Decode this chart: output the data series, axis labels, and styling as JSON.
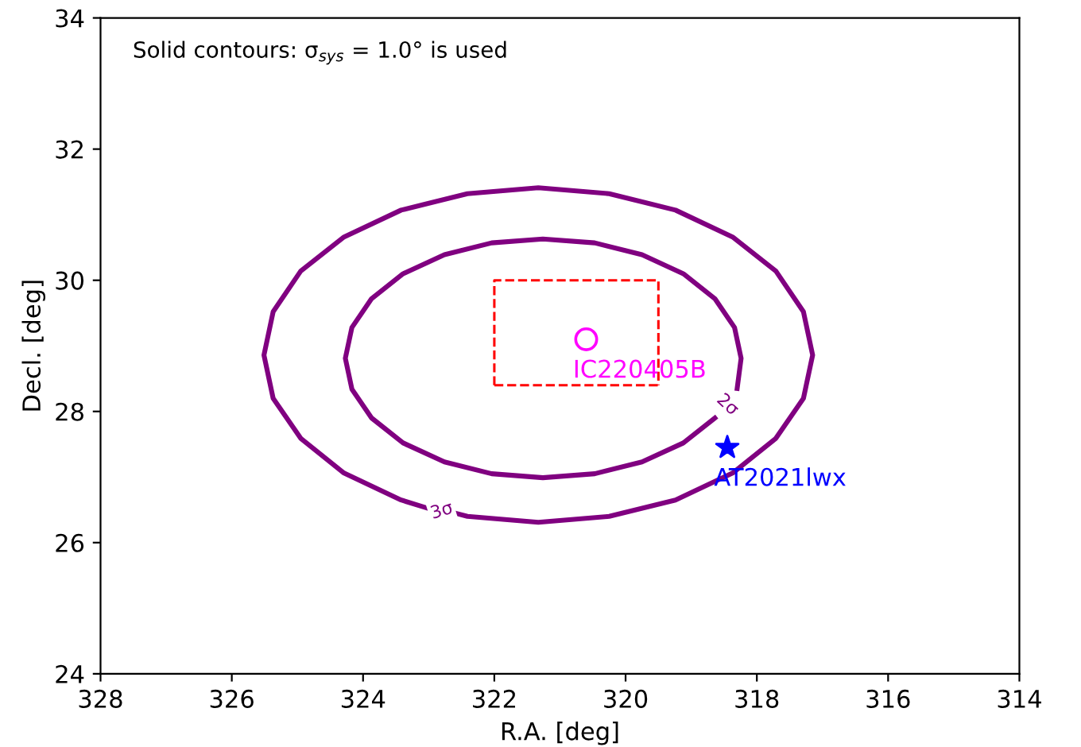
{
  "chart_data": {
    "type": "line",
    "xlabel": "R.A. [deg]",
    "ylabel": "Decl. [deg]",
    "xlim": [
      328,
      314
    ],
    "xticks": [
      328,
      326,
      324,
      322,
      320,
      318,
      316,
      314
    ],
    "ylim": [
      24,
      34
    ],
    "yticks": [
      24,
      26,
      28,
      30,
      32,
      34
    ],
    "grid": false,
    "legend": false,
    "series": [
      {
        "color": "#800080",
        "line_style": "solid",
        "marker": "none",
        "x": [
          323.0,
          323.42,
          324.29,
          324.95,
          325.37,
          325.51,
          325.37,
          324.95,
          324.29,
          323.42,
          322.41,
          321.33,
          320.25,
          319.24,
          318.37,
          317.71,
          317.29,
          317.15,
          317.29,
          317.71,
          318.37,
          319.24,
          320.25,
          321.33,
          322.41,
          322.6
        ],
        "values": [
          26.52,
          26.65,
          27.06,
          27.59,
          28.2,
          28.86,
          29.52,
          30.14,
          30.66,
          31.07,
          31.32,
          31.41,
          31.32,
          31.07,
          30.66,
          30.14,
          29.52,
          28.86,
          28.2,
          27.59,
          27.06,
          26.65,
          26.4,
          26.31,
          26.4,
          26.45
        ]
      },
      {
        "color": "#800080",
        "line_style": "solid",
        "marker": "none",
        "x": [
          318.64,
          319.12,
          319.75,
          320.47,
          321.26,
          322.04,
          322.76,
          323.39,
          323.87,
          324.17,
          324.27,
          324.17,
          323.87,
          323.39,
          322.76,
          322.04,
          321.26,
          320.47,
          319.75,
          319.12,
          318.64,
          318.34,
          318.24,
          318.3
        ],
        "values": [
          27.9,
          27.52,
          27.23,
          27.05,
          26.99,
          27.05,
          27.23,
          27.52,
          27.9,
          28.34,
          28.81,
          29.28,
          29.72,
          30.1,
          30.39,
          30.57,
          30.63,
          30.57,
          30.39,
          30.1,
          29.72,
          29.28,
          28.81,
          28.35
        ]
      },
      {
        "color": "#ff0000",
        "line_style": "dashed",
        "marker": "none",
        "x": [
          322.0,
          322.0,
          319.5,
          319.5
        ],
        "values": [
          28.4,
          30.0,
          30.0,
          28.4
        ]
      },
      {
        "color": "#ff0000",
        "line_style": "dashed",
        "marker": "none",
        "x": [
          322.0,
          319.5
        ],
        "values": [
          28.4,
          28.4
        ]
      },
      {
        "type": "scatter",
        "name": "IC220405B",
        "color": "#ff00ff",
        "marker": "circle",
        "x": [
          320.6
        ],
        "values": [
          29.1
        ]
      },
      {
        "type": "scatter",
        "name": "AT2021lwx",
        "color": "#0000ff",
        "marker": "star",
        "x": [
          318.45
        ],
        "values": [
          27.45
        ]
      }
    ],
    "annotations": [
      "Solid contours: σ$_{sys}$ = 1.0° is used",
      {
        "text": "2σ",
        "x": 318.45,
        "y": 28.1
      },
      {
        "text": "3σ",
        "x": 322.8,
        "y": 26.48
      }
    ]
  }
}
